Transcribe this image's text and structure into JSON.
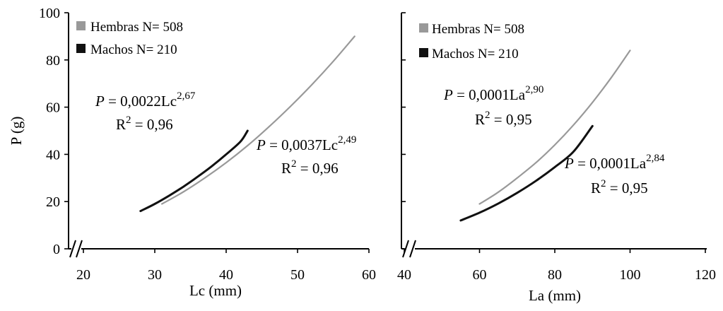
{
  "chart_data": [
    {
      "type": "line",
      "xlabel": "Lc (mm)",
      "ylabel": "P (g)",
      "xlim": [
        20,
        60
      ],
      "ylim": [
        0,
        100
      ],
      "x_ticks": [
        "20",
        "30",
        "40",
        "50",
        "60"
      ],
      "y_ticks": [
        "0",
        "20",
        "40",
        "60",
        "80",
        "100"
      ],
      "axis_break": true,
      "grid": false,
      "legend": "top-left",
      "series": [
        {
          "name": "Hembras N= 508",
          "color": "#999999",
          "x": [
            31,
            34,
            37,
            40,
            43,
            46,
            49,
            52,
            55,
            58
          ],
          "y": [
            19,
            24.1,
            30,
            36.5,
            43.7,
            51.7,
            60.3,
            69.5,
            79.4,
            90
          ],
          "equation": {
            "p": "P",
            "body": " = 0,0037Lc",
            "exp": "2,49",
            "r2_base": "R",
            "r2_sup": "2",
            "r2_rest": " = 0,96"
          }
        },
        {
          "name": "Machos N= 210",
          "color": "#111111",
          "x": [
            28,
            30,
            32,
            34,
            36,
            38,
            40,
            42,
            43
          ],
          "y": [
            16,
            19,
            22.5,
            26.3,
            30.5,
            35,
            40,
            45.4,
            50
          ],
          "equation": {
            "p": "P",
            "body": " = 0,0022Lc",
            "exp": "2,67",
            "r2_base": "R",
            "r2_sup": "2",
            "r2_rest": " = 0,96"
          }
        }
      ]
    },
    {
      "type": "line",
      "xlabel": "La (mm)",
      "ylabel": "",
      "xlim": [
        40,
        120
      ],
      "ylim": [
        0,
        100
      ],
      "x_ticks": [
        "40",
        "60",
        "80",
        "100",
        "120"
      ],
      "axis_break": true,
      "grid": false,
      "legend": "top-left",
      "series": [
        {
          "name": "Hembras N= 508",
          "color": "#999999",
          "x": [
            60,
            65,
            70,
            75,
            80,
            85,
            90,
            95,
            100
          ],
          "y": [
            19,
            24,
            30,
            36.5,
            44,
            52.5,
            62,
            72.5,
            84
          ],
          "equation": {
            "p": "P",
            "body": " = 0,0001La",
            "exp": "2,90",
            "r2_base": "R",
            "r2_sup": "2",
            "r2_rest": " = 0,95"
          }
        },
        {
          "name": "Machos N= 210",
          "color": "#111111",
          "x": [
            55,
            60,
            65,
            70,
            75,
            80,
            85,
            90
          ],
          "y": [
            12,
            15.3,
            19.2,
            23.7,
            28.8,
            34.6,
            41.2,
            52
          ],
          "equation": {
            "p": "P",
            "body": " = 0,0001La",
            "exp": "2,84",
            "r2_base": "R",
            "r2_sup": "2",
            "r2_rest": " = 0,95"
          }
        }
      ]
    }
  ]
}
